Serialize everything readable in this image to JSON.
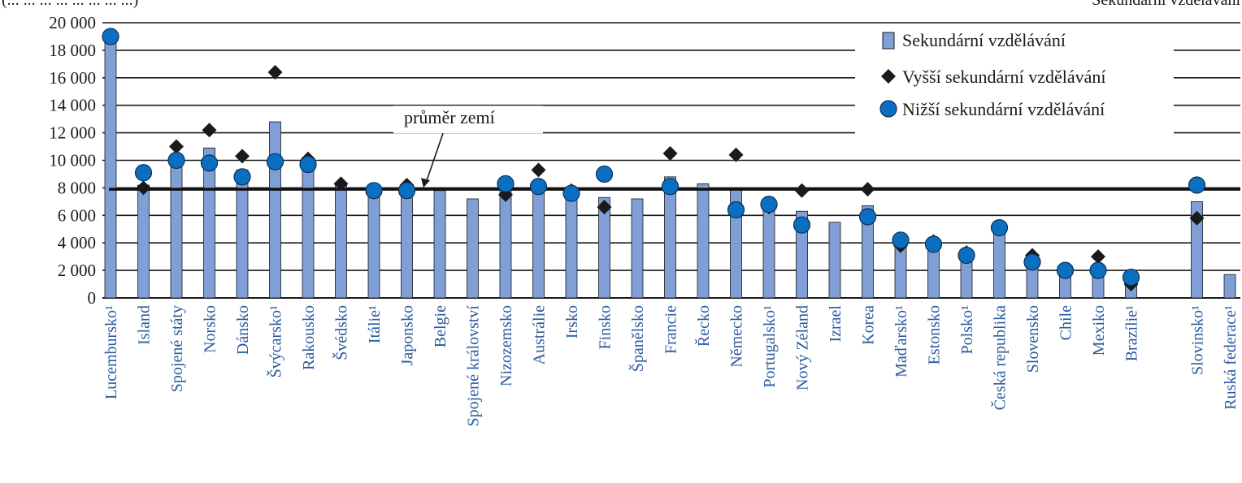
{
  "header": {
    "left_clipped": "(... ... ... ... ... ... ... ...)",
    "right_clipped": "Sekundární vzdělávání"
  },
  "chart_data": {
    "type": "bar",
    "title": "",
    "xlabel": "",
    "ylabel": "",
    "ylim": [
      0,
      20000
    ],
    "yticks": [
      0,
      2000,
      4000,
      6000,
      8000,
      10000,
      12000,
      14000,
      16000,
      18000,
      20000
    ],
    "ytick_labels": [
      "0",
      "2 000",
      "4 000",
      "6 000",
      "8 000",
      "10 000",
      "12 000",
      "14 000",
      "16 000",
      "18 000",
      "20 000"
    ],
    "grid": "horizontal",
    "legend_position": "top-right",
    "average": {
      "label": "průměr zemí",
      "value": 7900
    },
    "categories": [
      "Lucembursko¹",
      "Island",
      "Spojené státy",
      "Norsko",
      "Dánsko",
      "Švýcarsko¹",
      "Rakousko",
      "Švédsko",
      "Itálie¹",
      "Japonsko",
      "Belgie",
      "Spojené království",
      "Nizozemsko",
      "Austrálie",
      "Irsko",
      "Finsko",
      "Španělsko",
      "Francie",
      "Řecko",
      "Německo",
      "Portugalsko¹",
      "Nový Zéland",
      "Izrael",
      "Korea",
      "Maďarsko¹",
      "Estonsko",
      "Polsko¹",
      "Česká republika",
      "Slovensko",
      "Chile",
      "Mexiko",
      "Brazílie¹",
      "",
      "Slovinsko¹",
      "Ruská federace¹"
    ],
    "series": [
      {
        "name": "Sekundární vzdělávání",
        "marker": "bar",
        "color": "#7f9fd6",
        "values": [
          18900,
          8200,
          10200,
          10900,
          9300,
          12800,
          9900,
          8300,
          8000,
          8100,
          7800,
          7200,
          8300,
          8500,
          7700,
          7300,
          7200,
          8800,
          8300,
          7900,
          6800,
          6300,
          5500,
          6700,
          4100,
          4000,
          3100,
          5000,
          2700,
          2000,
          2000,
          1500,
          null,
          7000,
          1700
        ]
      },
      {
        "name": "Vyšší sekundární vzdělávání",
        "marker": "diamond",
        "color": "#1a1a1a",
        "values": [
          19000,
          8000,
          11000,
          12200,
          10300,
          16400,
          10100,
          8300,
          7800,
          8200,
          null,
          null,
          7500,
          9300,
          7800,
          6600,
          null,
          10500,
          null,
          10400,
          6600,
          7800,
          null,
          7900,
          3800,
          4100,
          3300,
          5000,
          3100,
          2000,
          3000,
          1000,
          null,
          5800,
          null
        ]
      },
      {
        "name": "Nižší sekundární vzdělávání",
        "marker": "circle",
        "color": "#0a6fc0",
        "values": [
          19000,
          9100,
          10000,
          9800,
          8800,
          9900,
          9700,
          null,
          7800,
          7800,
          null,
          null,
          8300,
          8100,
          7600,
          9000,
          null,
          8100,
          null,
          6400,
          6800,
          5300,
          null,
          5900,
          4200,
          3900,
          3100,
          5100,
          2600,
          2000,
          2000,
          1500,
          null,
          8200,
          null
        ]
      }
    ]
  }
}
